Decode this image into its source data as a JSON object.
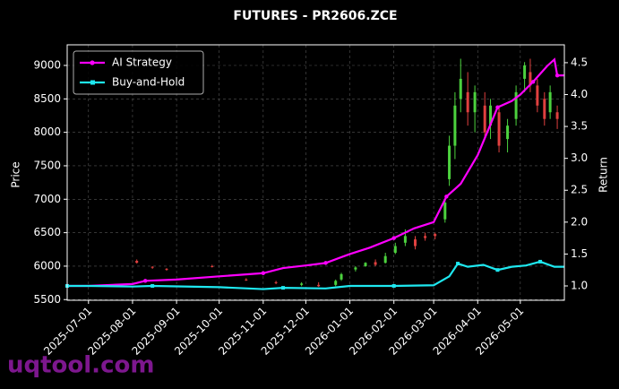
{
  "chart_data": {
    "type": "candlestick",
    "title": "FUTURES - PR2606.ZCE",
    "ylabel": "Price",
    "y2label": "Return",
    "x": [
      "2025-08-04",
      "2025-08-15",
      "2025-08-25",
      "2025-09-26",
      "2025-10-20",
      "2025-11-10",
      "2025-11-28",
      "2025-12-10",
      "2025-12-22",
      "2025-12-26",
      "2026-01-05",
      "2026-01-12",
      "2026-01-19",
      "2026-01-26",
      "2026-02-02",
      "2026-02-09",
      "2026-02-16",
      "2026-02-23",
      "2026-03-02",
      "2026-03-09",
      "2026-03-12",
      "2026-03-16",
      "2026-03-20",
      "2026-03-25",
      "2026-03-30",
      "2026-04-06",
      "2026-04-10",
      "2026-04-16",
      "2026-04-22",
      "2026-04-28",
      "2026-05-04",
      "2026-05-08",
      "2026-05-13",
      "2026-05-18",
      "2026-05-22",
      "2026-05-27"
    ],
    "open": [
      6080,
      5990,
      5960,
      6000,
      5800,
      5760,
      5720,
      5720,
      5720,
      5800,
      5950,
      6000,
      6060,
      6050,
      6200,
      6350,
      6400,
      6450,
      6480,
      6700,
      7300,
      7800,
      8500,
      8600,
      8300,
      8400,
      8100,
      8300,
      7900,
      8200,
      8800,
      8900,
      8700,
      8500,
      8300,
      8300
    ],
    "high": [
      6100,
      6000,
      5970,
      6020,
      5820,
      5780,
      5760,
      5760,
      5800,
      5900,
      6000,
      6060,
      6100,
      6200,
      6350,
      6550,
      6450,
      6500,
      6500,
      7000,
      7950,
      8600,
      9100,
      8900,
      8700,
      8600,
      8500,
      8400,
      8200,
      8700,
      9050,
      9100,
      8800,
      8600,
      8700,
      8400
    ],
    "low": [
      6040,
      5960,
      5930,
      5980,
      5780,
      5730,
      5700,
      5690,
      5700,
      5780,
      5920,
      5990,
      6000,
      6040,
      6180,
      6300,
      6250,
      6380,
      6400,
      6650,
      7200,
      7600,
      8300,
      8100,
      8000,
      7900,
      7900,
      7700,
      7700,
      8100,
      8600,
      8600,
      8300,
      8100,
      8200,
      8050
    ],
    "close": [
      6050,
      5980,
      5950,
      5990,
      5790,
      5750,
      5740,
      5700,
      5780,
      5880,
      5980,
      6050,
      6020,
      6150,
      6300,
      6450,
      6300,
      6420,
      6450,
      6950,
      7800,
      8400,
      8800,
      8300,
      8600,
      8000,
      8400,
      7800,
      8100,
      8600,
      9000,
      8700,
      8400,
      8200,
      8600,
      8200
    ],
    "up_color": "#4cd13e",
    "down_color": "#e0403f",
    "series": [
      {
        "name": "AI Strategy",
        "color": "#ff00ff",
        "marker": "circle",
        "axis": "y2",
        "x": [
          "2025-06-16",
          "2025-07-01",
          "2025-08-01",
          "2025-08-10",
          "2025-09-01",
          "2025-10-01",
          "2025-11-01",
          "2025-11-15",
          "2025-12-01",
          "2025-12-15",
          "2026-01-01",
          "2026-01-15",
          "2026-02-01",
          "2026-02-15",
          "2026-03-01",
          "2026-03-10",
          "2026-03-20",
          "2026-04-01",
          "2026-04-15",
          "2026-04-25",
          "2026-05-01",
          "2026-05-10",
          "2026-05-20",
          "2026-05-25",
          "2026-05-27",
          "2026-06-01"
        ],
        "values": [
          1.0,
          1.0,
          1.03,
          1.08,
          1.1,
          1.15,
          1.2,
          1.28,
          1.32,
          1.36,
          1.5,
          1.6,
          1.75,
          1.9,
          2.0,
          2.4,
          2.6,
          3.05,
          3.8,
          3.9,
          4.0,
          4.2,
          4.45,
          4.55,
          4.3,
          4.3
        ]
      },
      {
        "name": "Buy-and-Hold",
        "color": "#1ee8f0",
        "marker": "square",
        "axis": "y2",
        "x": [
          "2025-06-16",
          "2025-07-01",
          "2025-08-01",
          "2025-08-15",
          "2025-10-01",
          "2025-11-01",
          "2025-11-15",
          "2025-12-15",
          "2026-01-01",
          "2026-02-01",
          "2026-03-01",
          "2026-03-12",
          "2026-03-18",
          "2026-03-25",
          "2026-04-05",
          "2026-04-15",
          "2026-04-25",
          "2026-05-05",
          "2026-05-15",
          "2026-05-25",
          "2026-06-01"
        ],
        "values": [
          1.0,
          1.0,
          0.99,
          1.0,
          0.98,
          0.95,
          0.97,
          0.96,
          1.0,
          1.0,
          1.01,
          1.15,
          1.35,
          1.3,
          1.33,
          1.25,
          1.3,
          1.32,
          1.38,
          1.3,
          1.3
        ]
      }
    ],
    "xlim": [
      "2025-06-16",
      "2026-06-01"
    ],
    "xticks": [
      "2025-07-01",
      "2025-08-01",
      "2025-09-01",
      "2025-10-01",
      "2025-11-01",
      "2025-12-01",
      "2026-01-01",
      "2026-02-01",
      "2026-03-01",
      "2026-04-01",
      "2026-05-01"
    ],
    "ylim": [
      5490,
      9308
    ],
    "yticks": [
      5500,
      6000,
      6500,
      7000,
      7500,
      8000,
      8500,
      9000
    ],
    "y2lim": [
      0.775,
      4.78
    ],
    "y2ticks": [
      {
        "value": 1,
        "label": "1.0"
      },
      1.5,
      {
        "value": 2,
        "label": "2.0"
      },
      2.5,
      {
        "value": 3,
        "label": "3.0"
      },
      3.5,
      {
        "value": 4,
        "label": "4.0"
      },
      4.5
    ],
    "grid": true,
    "legend": "upper left"
  },
  "watermark": "uqtool.com"
}
